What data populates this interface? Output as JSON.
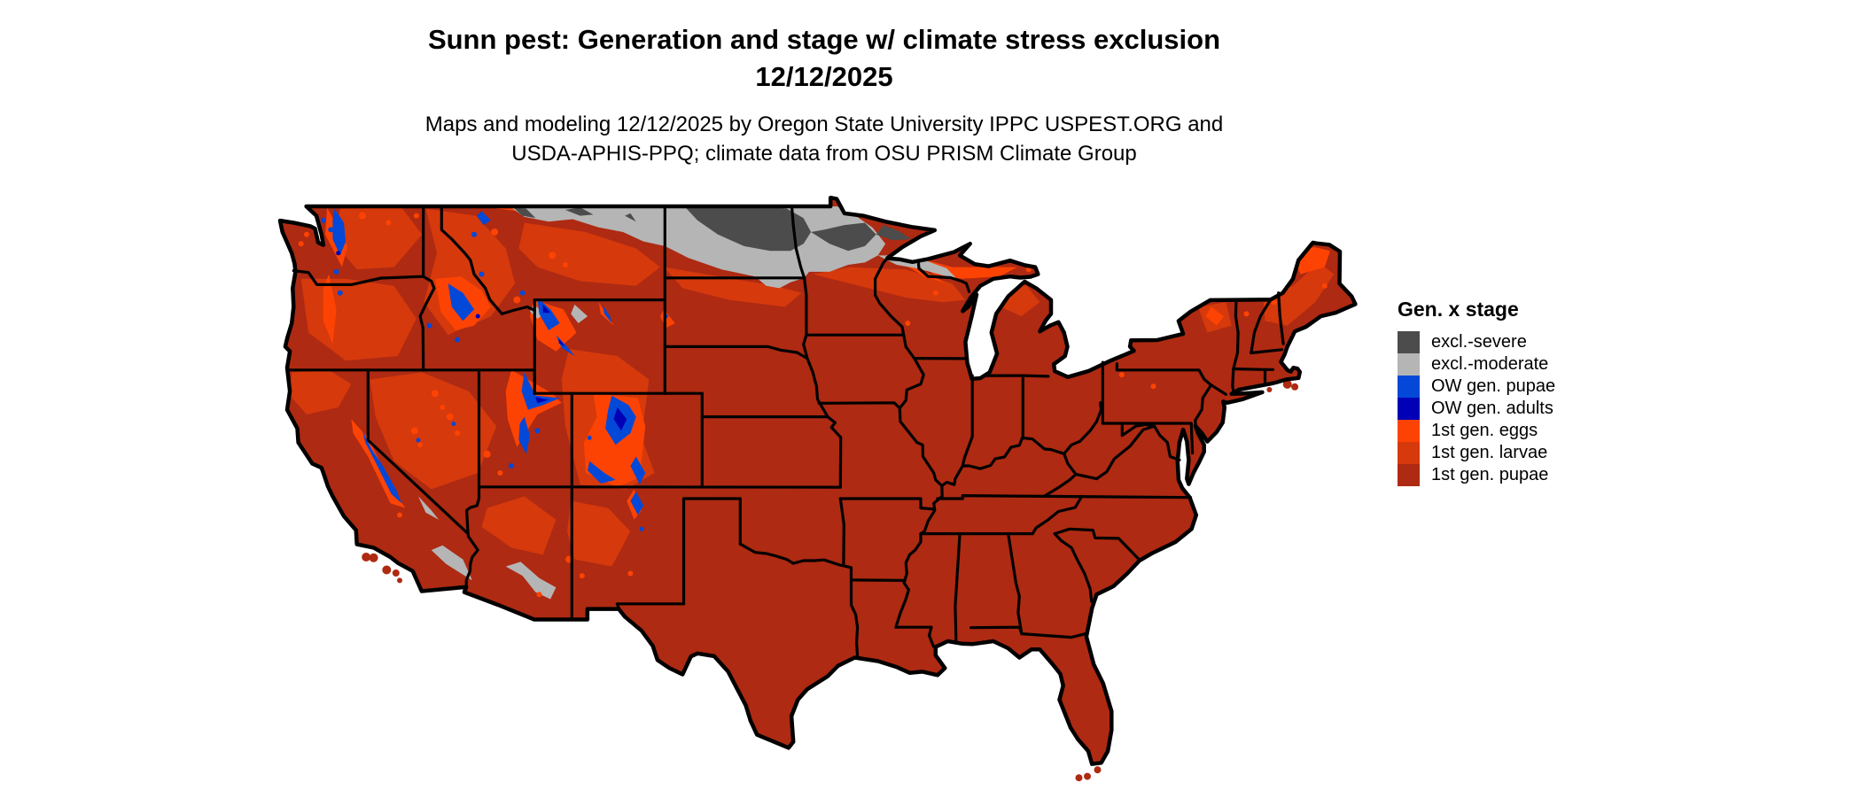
{
  "figure": {
    "title_line1": "Sunn pest: Generation and stage w/ climate stress exclusion",
    "title_line2": "12/12/2025",
    "subtitle_line1": "Maps and modeling 12/12/2025 by Oregon State University IPPC USPEST.ORG and",
    "subtitle_line2": "USDA-APHIS-PPQ; climate data from OSU PRISM Climate Group"
  },
  "legend": {
    "title": "Gen. x stage",
    "items": [
      {
        "label": "excl.-severe",
        "color": "#4C4C4C"
      },
      {
        "label": "excl.-moderate",
        "color": "#B5B5B5"
      },
      {
        "label": "OW gen. pupae",
        "color": "#0448D8"
      },
      {
        "label": "OW gen. adults",
        "color": "#0100B6"
      },
      {
        "label": "1st gen. eggs",
        "color": "#FD4303"
      },
      {
        "label": "1st gen. larvae",
        "color": "#D5390C"
      },
      {
        "label": "1st gen. pupae",
        "color": "#AE2A12"
      }
    ]
  },
  "map": {
    "region": "Contiguous United States",
    "date_shown": "12/12/2025",
    "dominant_class": "1st gen. pupae",
    "background_color": "#FFFFFF",
    "border_color": "#000000"
  }
}
